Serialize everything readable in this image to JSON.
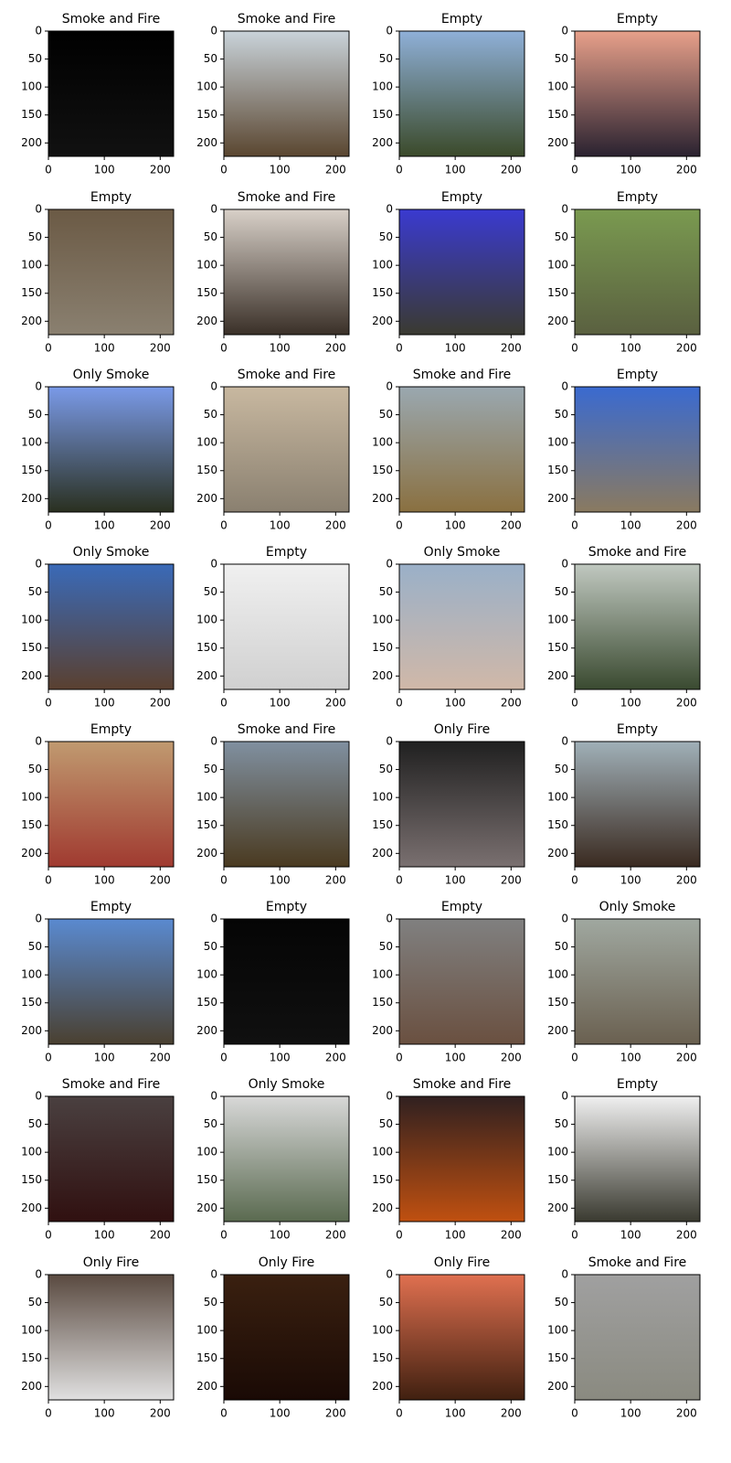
{
  "panels": [
    {
      "title": "Smoke and Fire"
    },
    {
      "title": "Smoke and Fire"
    },
    {
      "title": "Empty"
    },
    {
      "title": "Empty"
    },
    {
      "title": "Empty"
    },
    {
      "title": "Smoke and Fire"
    },
    {
      "title": "Empty"
    },
    {
      "title": "Empty"
    },
    {
      "title": "Only Smoke"
    },
    {
      "title": "Smoke and Fire"
    },
    {
      "title": "Smoke and Fire"
    },
    {
      "title": "Empty"
    },
    {
      "title": "Only Smoke"
    },
    {
      "title": "Empty"
    },
    {
      "title": "Only Smoke"
    },
    {
      "title": "Smoke and Fire"
    },
    {
      "title": "Empty"
    },
    {
      "title": "Smoke and Fire"
    },
    {
      "title": "Only Fire"
    },
    {
      "title": "Empty"
    },
    {
      "title": "Empty"
    },
    {
      "title": "Empty"
    },
    {
      "title": "Empty"
    },
    {
      "title": "Only Smoke"
    },
    {
      "title": "Smoke and Fire"
    },
    {
      "title": "Only Smoke"
    },
    {
      "title": "Smoke and Fire"
    },
    {
      "title": "Empty"
    },
    {
      "title": "Only Fire"
    },
    {
      "title": "Only Fire"
    },
    {
      "title": "Only Fire"
    },
    {
      "title": "Smoke and Fire"
    }
  ],
  "xlim": [
    0,
    224
  ],
  "ylim": [
    0,
    224
  ],
  "xticks": [
    0,
    100,
    200
  ],
  "yticks": [
    0,
    50,
    100,
    150,
    200
  ]
}
